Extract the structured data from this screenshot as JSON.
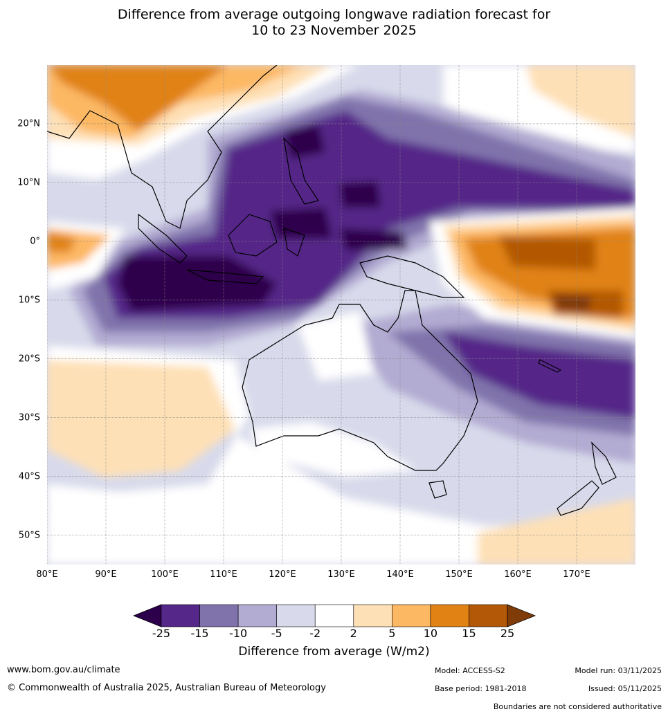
{
  "title": {
    "line1": "Difference from average outgoing longwave radiation forecast for",
    "line2": "10 to 23 November 2025"
  },
  "map": {
    "lat_labels": [
      "20°N",
      "10°N",
      "0°",
      "10°S",
      "20°S",
      "30°S",
      "40°S",
      "50°S"
    ],
    "lon_labels": [
      "80°E",
      "90°E",
      "100°E",
      "110°E",
      "120°E",
      "130°E",
      "140°E",
      "150°E",
      "160°E",
      "170°E"
    ],
    "lon_range": [
      80,
      180
    ],
    "lat_range": [
      -55,
      30
    ]
  },
  "colorbar": {
    "ticks": [
      "-25",
      "-15",
      "-10",
      "-5",
      "-2",
      "2",
      "5",
      "10",
      "15",
      "25"
    ],
    "colors": [
      "#2d004b",
      "#542788",
      "#8073ac",
      "#b2abd2",
      "#d8daeb",
      "#ffffff",
      "#fee0b6",
      "#fdb863",
      "#e08214",
      "#b35806",
      "#7f3b08"
    ],
    "label": "Difference from average (W/m2)"
  },
  "footer": {
    "website": "www.bom.gov.au/climate",
    "copyright": "© Commonwealth of Australia 2025, Australian Bureau of Meteorology",
    "model": "Model: ACCESS-S2",
    "base_period": "Base period: 1981-2018",
    "model_run": "Model run: 03/11/2025",
    "issued": "Issued: 05/11/2025",
    "disclaimer": "Boundaries are not considered authoritative"
  }
}
